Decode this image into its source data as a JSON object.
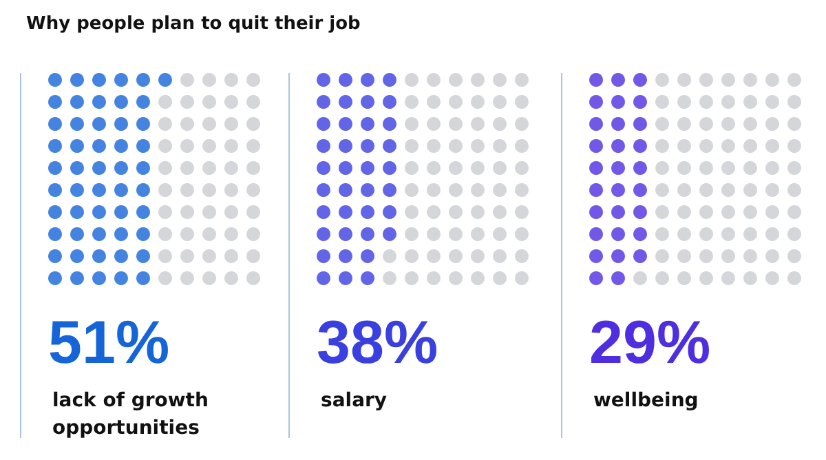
{
  "chart_data": {
    "type": "other",
    "title": "Why people plan to quit their job",
    "categories": [
      "lack of growth opportunities",
      "salary",
      "wellbeing"
    ],
    "values": [
      51,
      38,
      29
    ],
    "value_labels": [
      "51%",
      "38%",
      "29%"
    ],
    "colors": [
      "#1565d8",
      "#3a3fe0",
      "#4f2ee0"
    ]
  }
}
